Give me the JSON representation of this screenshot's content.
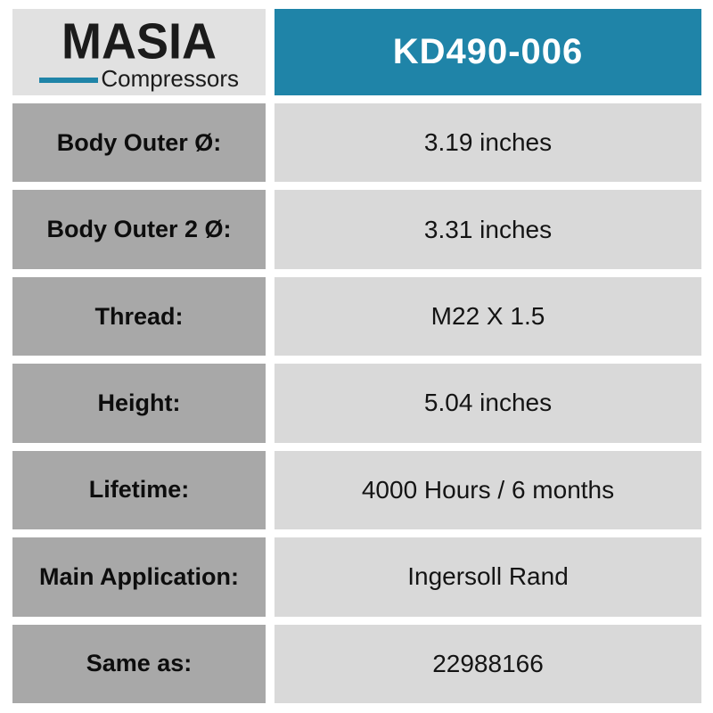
{
  "brand": {
    "name": "MASIA",
    "tagline": "Compressors"
  },
  "header": {
    "part_number": "KD490-006"
  },
  "colors": {
    "accent_blue": "#1f84a8",
    "label_gray": "#a8a8a8",
    "value_gray": "#d9d9d9",
    "logo_bg": "#e1e1e1",
    "part_text": "#ffffff"
  },
  "rows": [
    {
      "label": "Body Outer Ø:",
      "value": "3.19 inches"
    },
    {
      "label": "Body Outer 2 Ø:",
      "value": "3.31 inches"
    },
    {
      "label": "Thread:",
      "value": "M22 X 1.5"
    },
    {
      "label": "Height:",
      "value": "5.04 inches"
    },
    {
      "label": "Lifetime:",
      "value": "4000 Hours / 6 months"
    },
    {
      "label": "Main Application:",
      "value": "Ingersoll Rand"
    },
    {
      "label": "Same as:",
      "value": "22988166"
    }
  ]
}
